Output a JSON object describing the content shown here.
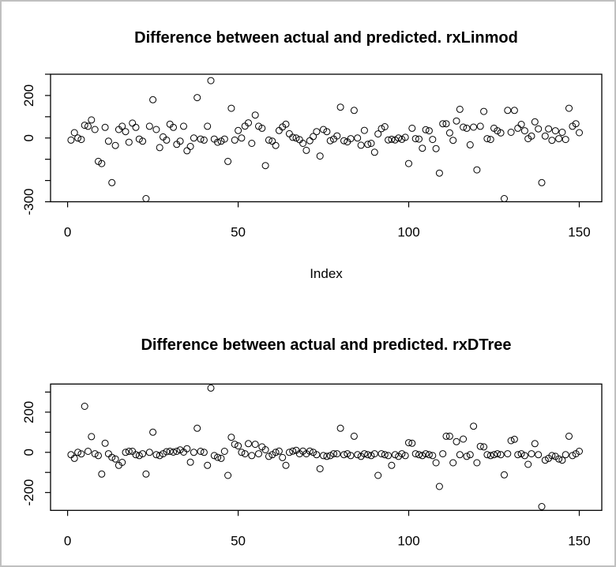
{
  "window": {
    "background": "#ffffff",
    "border_color": "#c0c0c0",
    "stroke_color": "#000000"
  },
  "chart_data": [
    {
      "type": "scatter",
      "title": "Difference between actual and predicted. rxLinmod",
      "xlabel": "Index",
      "ylabel": "",
      "marker": "open-circle",
      "marker_color": "#000000",
      "grid": false,
      "legend": "none",
      "x_is_index_1_to_n": true,
      "xlim": [
        -5,
        156.6
      ],
      "ylim": [
        -300,
        300
      ],
      "x_ticks": [
        0,
        50,
        100,
        150
      ],
      "x_tick_labels": [
        "0",
        "50",
        "100",
        "150"
      ],
      "y_ticks": [
        300,
        200,
        100,
        0,
        -100,
        -200,
        -300
      ],
      "y_tick_labels": [
        "",
        "200",
        "",
        "0",
        "",
        "",
        "-300"
      ],
      "values": [
        -10,
        25,
        0,
        -7,
        60,
        55,
        85,
        40,
        -110,
        -120,
        50,
        -15,
        -210,
        -35,
        40,
        55,
        30,
        -20,
        70,
        50,
        -5,
        -15,
        -285,
        55,
        180,
        40,
        -45,
        5,
        -10,
        65,
        50,
        -30,
        -15,
        55,
        -60,
        -40,
        0,
        190,
        -5,
        -10,
        55,
        270,
        -5,
        -20,
        -15,
        -5,
        -110,
        140,
        -10,
        35,
        0,
        56,
        71,
        -25,
        108,
        55,
        46,
        -130,
        -10,
        -15,
        -35,
        35,
        52,
        65,
        20,
        3,
        0,
        -8,
        -25,
        -58,
        -13,
        7,
        30,
        -85,
        40,
        30,
        -13,
        -5,
        10,
        145,
        -13,
        -18,
        -3,
        130,
        0,
        -34,
        36,
        -30,
        -25,
        -67,
        19,
        44,
        53,
        -9,
        -6,
        -9,
        0,
        -6,
        3,
        -120,
        46,
        -3,
        -5,
        -48,
        39,
        34,
        -7,
        -50,
        -165,
        67,
        67,
        24,
        -11,
        80,
        135,
        51,
        46,
        -32,
        51,
        -150,
        55,
        125,
        -3,
        -7,
        46,
        34,
        24,
        -285,
        130,
        27,
        130,
        46,
        64,
        34,
        -3,
        9,
        76,
        43,
        -210,
        9,
        43,
        -11,
        34,
        -3,
        27,
        -7,
        140,
        55,
        67,
        25
      ]
    },
    {
      "type": "scatter",
      "title": "Difference between actual and predicted. rxDTree",
      "xlabel": "",
      "ylabel": "",
      "marker": "open-circle",
      "marker_color": "#000000",
      "grid": false,
      "legend": "none",
      "x_is_index_1_to_n": true,
      "xlim": [
        -5,
        156.6
      ],
      "ylim": [
        -289,
        340
      ],
      "x_ticks": [
        0,
        50,
        100,
        150
      ],
      "x_tick_labels": [
        "0",
        "50",
        "100",
        "150"
      ],
      "y_ticks": [
        300,
        200,
        100,
        0,
        -100,
        -200
      ],
      "y_tick_labels": [
        "",
        "200",
        "",
        "0",
        "",
        "-200"
      ],
      "values": [
        -12,
        -30,
        0,
        -8,
        229,
        5,
        78,
        -7,
        -16,
        -108,
        45,
        -7,
        -25,
        -33,
        -65,
        -50,
        0,
        5,
        5,
        -12,
        -16,
        -7,
        -108,
        0,
        100,
        -12,
        -16,
        -7,
        3,
        5,
        1,
        5,
        12,
        1,
        18,
        -49,
        0,
        120,
        5,
        0,
        -65,
        320,
        -16,
        -25,
        -30,
        5,
        -115,
        75,
        40,
        32,
        0,
        -7,
        43,
        -16,
        40,
        -7,
        27,
        13,
        -20,
        -12,
        0,
        6,
        -26,
        -65,
        0,
        6,
        10,
        -7,
        6,
        -7,
        6,
        0,
        -12,
        -82,
        -16,
        -20,
        -16,
        -7,
        -7,
        120,
        -12,
        -7,
        -16,
        80,
        -12,
        -20,
        -7,
        -12,
        -16,
        -7,
        -115,
        -7,
        -12,
        -16,
        -65,
        -12,
        -20,
        -7,
        -16,
        48,
        45,
        -7,
        -12,
        -16,
        -7,
        -12,
        -16,
        -52,
        -170,
        -7,
        80,
        80,
        -52,
        53,
        -12,
        66,
        -20,
        -12,
        130,
        -52,
        30,
        27,
        -12,
        -16,
        -12,
        -7,
        -12,
        -112,
        -7,
        58,
        65,
        -12,
        -7,
        -16,
        -60,
        -7,
        43,
        -12,
        -270,
        -39,
        -30,
        -16,
        -20,
        -33,
        -39,
        -12,
        80,
        -16,
        -7,
        5
      ]
    }
  ]
}
